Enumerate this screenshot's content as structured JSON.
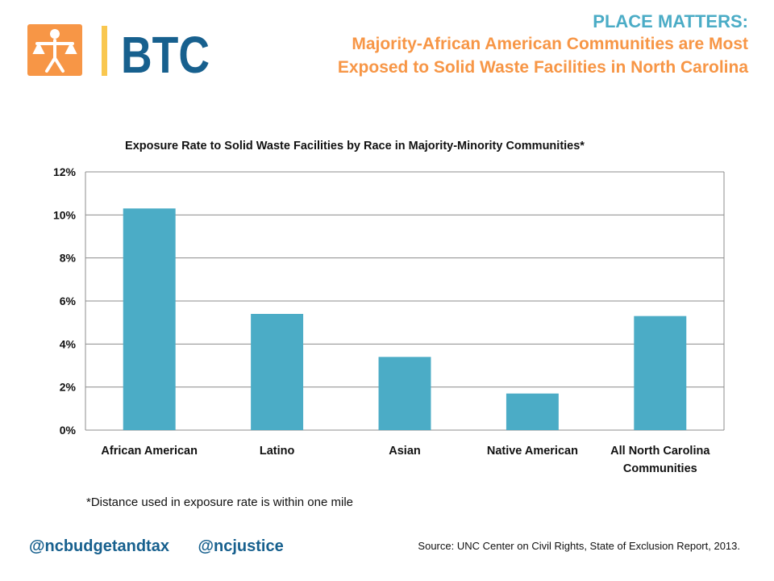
{
  "header": {
    "brand": "BTC",
    "kicker": "PLACE MATTERS:",
    "subtitle_line1": "Majority-African American Communities are Most",
    "subtitle_line2": "Exposed to Solid Waste Facilities in North Carolina"
  },
  "colors": {
    "bar": "#4bacc6",
    "kicker": "#4bacc6",
    "subtitle": "#f79646",
    "brand": "#17608e",
    "logo_orange": "#f79646",
    "logo_yellow": "#f9c74f"
  },
  "chart_data": {
    "type": "bar",
    "title": "Exposure Rate to Solid Waste Facilities by Race in Majority-Minority Communities*",
    "categories": [
      [
        "African American"
      ],
      [
        "Latino"
      ],
      [
        "Asian"
      ],
      [
        "Native American"
      ],
      [
        "All North Carolina",
        "Communities"
      ]
    ],
    "values": [
      10.3,
      5.4,
      3.4,
      1.7,
      5.3
    ],
    "ylim": [
      0,
      12
    ],
    "yticks": [
      0,
      2,
      4,
      6,
      8,
      10,
      12
    ],
    "ytick_labels": [
      "0%",
      "2%",
      "4%",
      "6%",
      "8%",
      "10%",
      "12%"
    ],
    "grid": true,
    "xlabel": "",
    "ylabel": ""
  },
  "footnote": "*Distance used in exposure rate is within one mile",
  "social": {
    "handle1": "@ncbudgetandtax",
    "handle2": "@ncjustice"
  },
  "source": "Source: UNC Center on Civil Rights, State of Exclusion Report, 2013."
}
